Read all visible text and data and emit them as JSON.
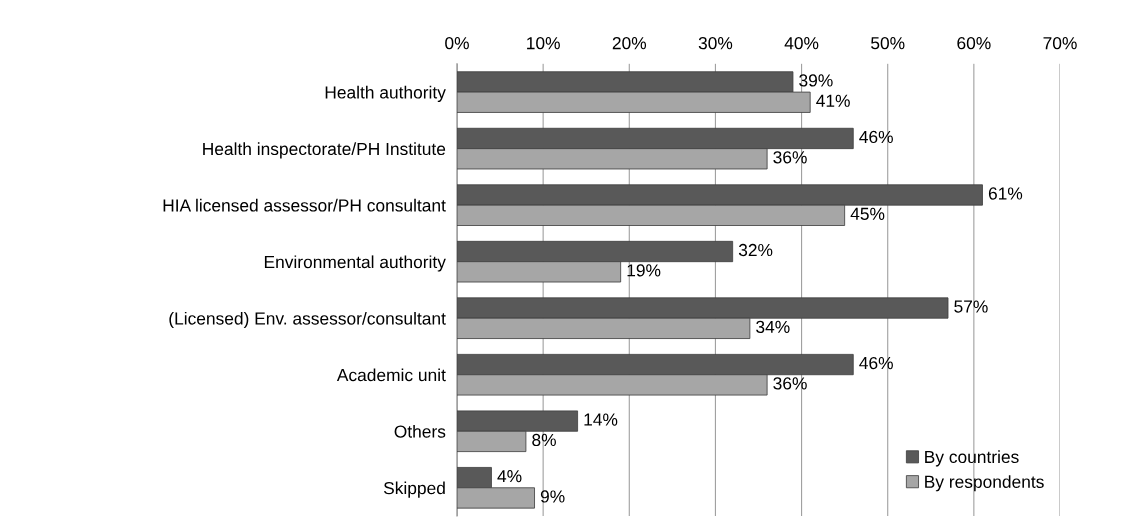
{
  "chart_data": {
    "type": "bar",
    "orientation": "horizontal",
    "categories": [
      "Health authority",
      "Health inspectorate/PH Institute",
      "HIA licensed assessor/PH consultant",
      "Environmental authority",
      "(Licensed) Env. assessor/consultant",
      "Academic unit",
      "Others",
      "Skipped"
    ],
    "series": [
      {
        "name": "By countries",
        "color": "#595959",
        "values": [
          39,
          46,
          61,
          32,
          57,
          46,
          14,
          4
        ],
        "value_labels": [
          "39%",
          "46%",
          "61%",
          "32%",
          "57%",
          "46%",
          "14%",
          "4%"
        ]
      },
      {
        "name": "By respondents",
        "color": "#a6a6a6",
        "values": [
          41,
          36,
          45,
          19,
          34,
          36,
          8,
          9
        ],
        "value_labels": [
          "41%",
          "36%",
          "45%",
          "19%",
          "34%",
          "36%",
          "8%",
          "9%"
        ]
      }
    ],
    "xlim": [
      0,
      70
    ],
    "xticks": [
      {
        "value": 0,
        "label": "0%"
      },
      {
        "value": 10,
        "label": "10%"
      },
      {
        "value": 20,
        "label": "20%"
      },
      {
        "value": 30,
        "label": "30%"
      },
      {
        "value": 40,
        "label": "40%"
      },
      {
        "value": 50,
        "label": "50%"
      },
      {
        "value": 60,
        "label": "60%"
      },
      {
        "value": 70,
        "label": "70%"
      }
    ],
    "grid": "x",
    "legend": "bottom right"
  }
}
